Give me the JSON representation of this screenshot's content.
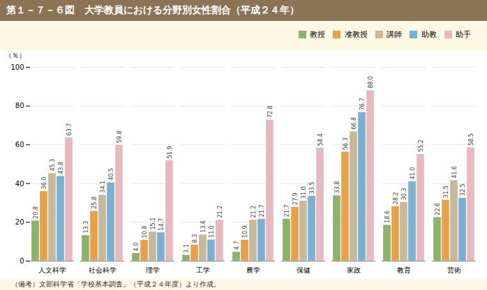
{
  "chart_data": {
    "type": "bar",
    "title": "第１－７－６図　大学教員における分野別女性割合（平成２４年）",
    "subtitle": "（備考）文部科学省「学校基本調査」（平成２４年度）より作成。",
    "ylabel": "（％）",
    "categories": [
      "人文科学",
      "社会科学",
      "理学",
      "工学",
      "農学",
      "保健",
      "家政",
      "教育",
      "芸術"
    ],
    "series": [
      {
        "name": "教授",
        "color": "#8db36a",
        "values": [
          20.8,
          13.3,
          4.0,
          3.1,
          4.7,
          21.7,
          33.8,
          18.6,
          22.6
        ],
        "value_labels": [
          "20.8",
          "13.3",
          "4.0",
          "3.1",
          "4.7",
          "21.7",
          "33.8",
          "18.6",
          "22.6"
        ]
      },
      {
        "name": "准教授",
        "color": "#e8a04a",
        "values": [
          36.0,
          25.8,
          10.8,
          8.3,
          10.9,
          27.9,
          56.3,
          28.2,
          31.5
        ],
        "value_labels": [
          "36.0",
          "25.8",
          "10.8",
          "8.3",
          "10.9",
          "27.9",
          "56.3",
          "28.2",
          "31.5"
        ]
      },
      {
        "name": "講師",
        "color": "#c8b89a",
        "values": [
          45.3,
          34.1,
          15.1,
          13.6,
          21.2,
          31.0,
          66.8,
          30.3,
          41.6
        ],
        "value_labels": [
          "45.3",
          "34.1",
          "15.1",
          "13.6",
          "21.2",
          "31.0",
          "66.8",
          "30.3",
          "41.6"
        ]
      },
      {
        "name": "助教",
        "color": "#7ab0d0",
        "values": [
          43.8,
          40.5,
          14.7,
          11.0,
          21.7,
          33.5,
          76.7,
          41.0,
          32.5
        ],
        "value_labels": [
          "43.8",
          "40.5",
          "14.7",
          "11.0",
          "21.7",
          "33.5",
          "76.7",
          "41.0",
          "32.5"
        ]
      },
      {
        "name": "助手",
        "color": "#e8b8c0",
        "values": [
          63.7,
          59.8,
          51.9,
          21.2,
          72.8,
          58.4,
          88.0,
          55.2,
          58.5
        ],
        "value_labels": [
          "63.7",
          "59.8",
          "51.9",
          "21.2",
          "72.8",
          "58.4",
          "88.0",
          "55.2",
          "58.5"
        ]
      }
    ],
    "ylim": [
      0,
      100
    ],
    "yticks": [
      0,
      20,
      40,
      60,
      80,
      100
    ],
    "grid": true,
    "legend": "top-right",
    "data_labels": true
  }
}
